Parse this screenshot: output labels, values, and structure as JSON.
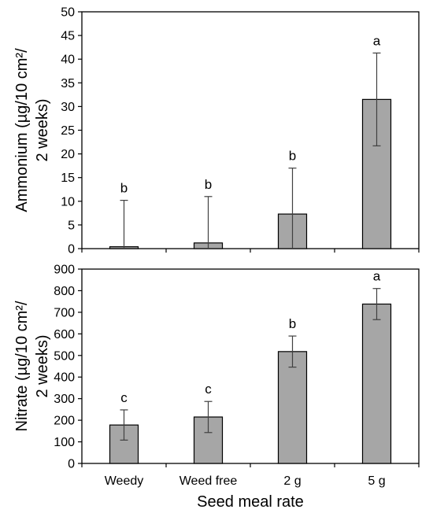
{
  "chart_data": {
    "shared_x": {
      "xlabel": "Seed meal rate",
      "categories": [
        "Weedy",
        "Weed free",
        "2 g",
        "5 g"
      ]
    },
    "panels": [
      {
        "type": "bar",
        "ylabel_lines": [
          "Ammonium (µg/10 cm²/",
          "2 weeks)"
        ],
        "ylim": [
          0,
          50
        ],
        "yticks": [
          0,
          5,
          10,
          15,
          20,
          25,
          30,
          35,
          40,
          45,
          50
        ],
        "values": [
          0.4,
          1.2,
          7.3,
          31.5
        ],
        "errors": [
          9.8,
          9.8,
          9.7,
          9.8
        ],
        "letters": [
          "b",
          "b",
          "b",
          "a"
        ],
        "bar_color": "#a6a6a6"
      },
      {
        "type": "bar",
        "ylabel_lines": [
          "Nitrate (µg/10 cm²/",
          "2 weeks)"
        ],
        "ylim": [
          0,
          900
        ],
        "yticks": [
          0,
          100,
          200,
          300,
          400,
          500,
          600,
          700,
          800,
          900
        ],
        "values": [
          178,
          215,
          518,
          738
        ],
        "errors": [
          70,
          72,
          72,
          72
        ],
        "letters": [
          "c",
          "c",
          "b",
          "a"
        ],
        "bar_color": "#a6a6a6"
      }
    ]
  }
}
